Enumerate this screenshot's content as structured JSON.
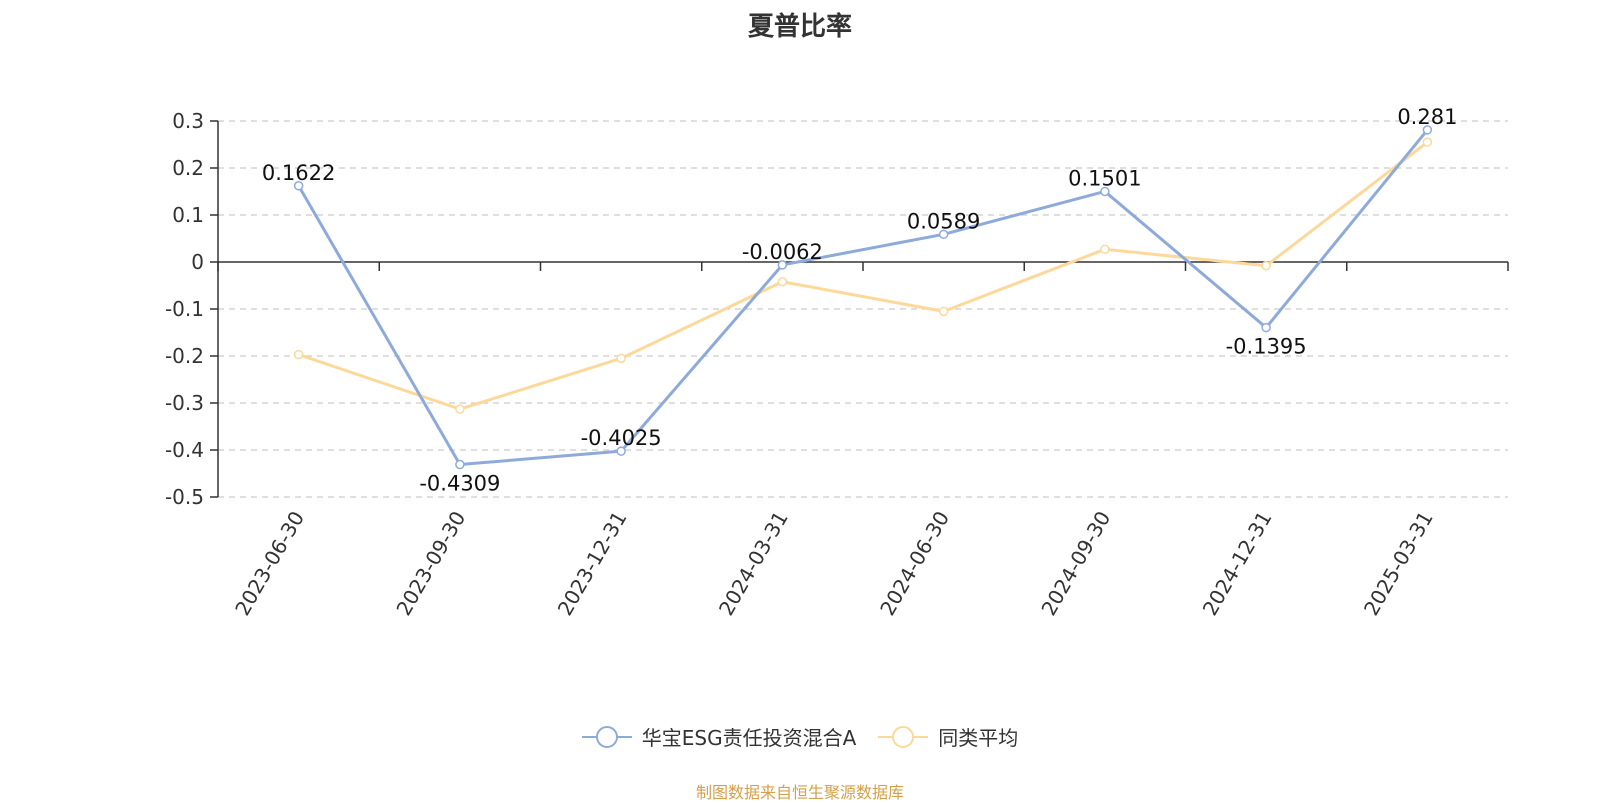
{
  "chart_data": {
    "type": "line",
    "title": "夏普比率",
    "categories": [
      "2023-06-30",
      "2023-09-30",
      "2023-12-31",
      "2024-03-31",
      "2024-06-30",
      "2024-09-30",
      "2024-12-31",
      "2025-03-31"
    ],
    "series": [
      {
        "name": "华宝ESG责任投资混合A",
        "color": "#8eaadb",
        "values": [
          0.1622,
          -0.4309,
          -0.4025,
          -0.0062,
          0.0589,
          0.1501,
          -0.1395,
          0.281
        ],
        "labels": [
          "0.1622",
          "-0.4309",
          "-0.4025",
          "-0.0062",
          "0.0589",
          "0.1501",
          "-0.1395",
          "0.281"
        ]
      },
      {
        "name": "同类平均",
        "color": "#fcd99a",
        "values": [
          -0.197,
          -0.313,
          -0.205,
          -0.042,
          -0.105,
          0.027,
          -0.008,
          0.255
        ]
      }
    ],
    "y_ticks": [
      0.3,
      0.2,
      0.1,
      0,
      -0.1,
      -0.2,
      -0.3,
      -0.4,
      -0.5
    ],
    "y_tick_labels": [
      "0.3",
      "0.2",
      "0.1",
      "0",
      "-0.1",
      "-0.2",
      "-0.3",
      "-0.4",
      "-0.5"
    ],
    "ylim": [
      -0.5,
      0.3
    ],
    "grid": true,
    "legend_position": "bottom-center"
  },
  "source_note": "制图数据来自恒生聚源数据库",
  "colors": {
    "axis": "#333333",
    "grid": "#cccccc",
    "source_note": "#d4a04a"
  }
}
